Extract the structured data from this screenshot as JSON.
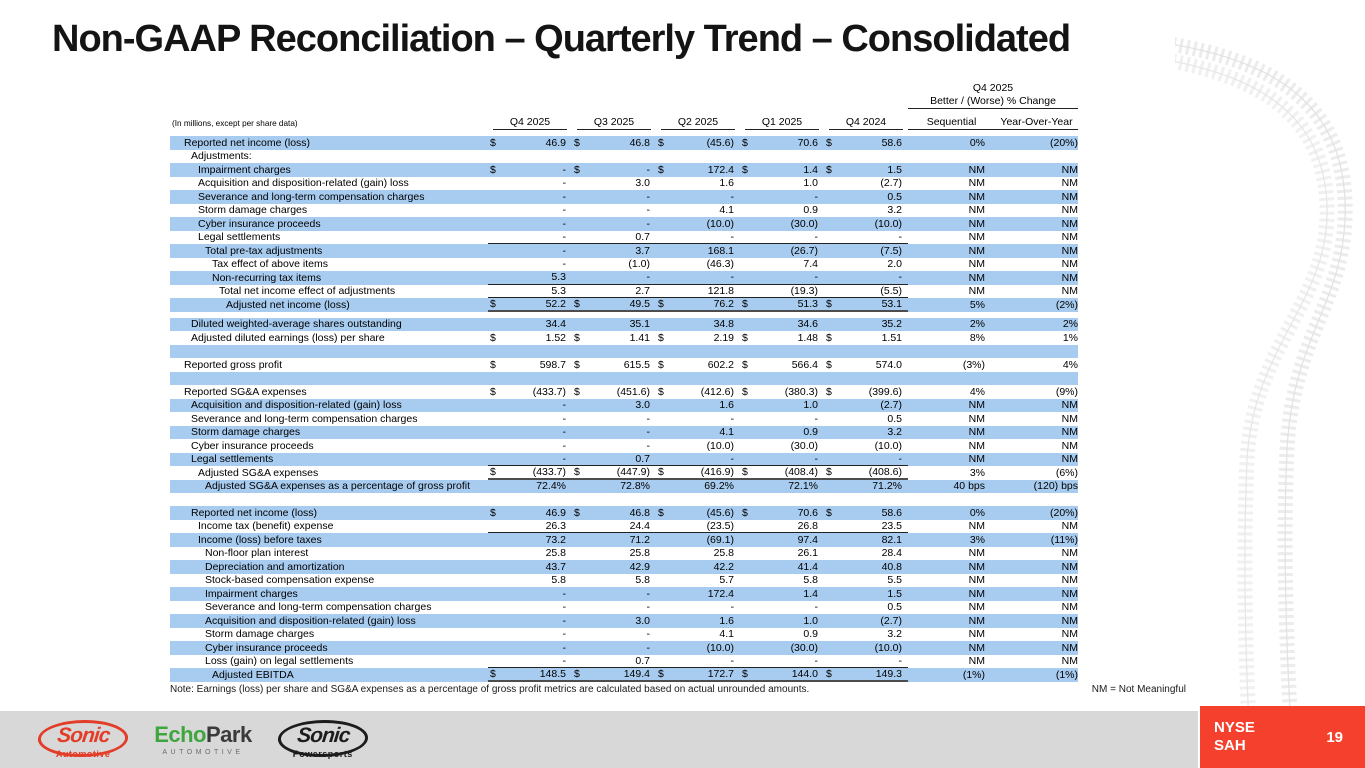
{
  "slide": {
    "title": "Non-GAAP Reconciliation – Quarterly Trend – Consolidated",
    "note": "Note: Earnings (loss) per share and SG&A expenses as a percentage of gross profit metrics are calculated based on actual unrounded amounts.",
    "nm_legend": "NM = Not Meaningful"
  },
  "table": {
    "units_label": "(In millions, except per share data)",
    "change_header": {
      "line1": "Q4 2025",
      "line2": "Better / (Worse) % Change"
    },
    "columns": [
      "Q4 2025",
      "Q3 2025",
      "Q2 2025",
      "Q1 2025",
      "Q4 2024"
    ],
    "change_columns": [
      "Sequential",
      "Year-Over-Year"
    ],
    "rows": [
      {
        "label": "Reported net income (loss)",
        "indent": 0,
        "shaded": true,
        "dollar": true,
        "values": [
          "46.9",
          "46.8",
          "(45.6)",
          "70.6",
          "58.6"
        ],
        "seq": "0%",
        "yoy": "(20%)"
      },
      {
        "label": "Adjustments:",
        "indent": 1,
        "shaded": false,
        "values": [
          "",
          "",
          "",
          "",
          ""
        ],
        "seq": "",
        "yoy": ""
      },
      {
        "label": "Impairment charges",
        "indent": 2,
        "shaded": true,
        "dollar": true,
        "values": [
          "-",
          "-",
          "172.4",
          "1.4",
          "1.5"
        ],
        "seq": "NM",
        "yoy": "NM"
      },
      {
        "label": "Acquisition and disposition-related (gain) loss",
        "indent": 2,
        "shaded": false,
        "values": [
          "-",
          "3.0",
          "1.6",
          "1.0",
          "(2.7)"
        ],
        "seq": "NM",
        "yoy": "NM"
      },
      {
        "label": "Severance and long-term compensation charges",
        "indent": 2,
        "shaded": true,
        "values": [
          "-",
          "-",
          "-",
          "-",
          "0.5"
        ],
        "seq": "NM",
        "yoy": "NM"
      },
      {
        "label": "Storm damage charges",
        "indent": 2,
        "shaded": false,
        "values": [
          "-",
          "-",
          "4.1",
          "0.9",
          "3.2"
        ],
        "seq": "NM",
        "yoy": "NM"
      },
      {
        "label": "Cyber insurance proceeds",
        "indent": 2,
        "shaded": true,
        "values": [
          "-",
          "-",
          "(10.0)",
          "(30.0)",
          "(10.0)"
        ],
        "seq": "NM",
        "yoy": "NM"
      },
      {
        "label": "Legal settlements",
        "indent": 2,
        "shaded": false,
        "values": [
          "-",
          "0.7",
          "-",
          "-",
          "-"
        ],
        "seq": "NM",
        "yoy": "NM",
        "border": "thin"
      },
      {
        "label": "Total pre-tax adjustments",
        "indent": 3,
        "shaded": true,
        "values": [
          "-",
          "3.7",
          "168.1",
          "(26.7)",
          "(7.5)"
        ],
        "seq": "NM",
        "yoy": "NM"
      },
      {
        "label": "Tax effect of above items",
        "indent": 4,
        "shaded": false,
        "values": [
          "-",
          "(1.0)",
          "(46.3)",
          "7.4",
          "2.0"
        ],
        "seq": "NM",
        "yoy": "NM"
      },
      {
        "label": "Non-recurring tax items",
        "indent": 4,
        "shaded": true,
        "values": [
          "5.3",
          "-",
          "-",
          "-",
          "-"
        ],
        "seq": "NM",
        "yoy": "NM",
        "border": "thin"
      },
      {
        "label": "Total net income effect of adjustments",
        "indent": 5,
        "shaded": false,
        "values": [
          "5.3",
          "2.7",
          "121.8",
          "(19.3)",
          "(5.5)"
        ],
        "seq": "NM",
        "yoy": "NM",
        "border": "thin"
      },
      {
        "label": "Adjusted net income (loss)",
        "indent": 6,
        "shaded": true,
        "dollar": true,
        "values": [
          "52.2",
          "49.5",
          "76.2",
          "51.3",
          "53.1"
        ],
        "seq": "5%",
        "yoy": "(2%)",
        "border": "thick"
      },
      {
        "type": "gap",
        "h": 6
      },
      {
        "label": "Diluted weighted-average shares outstanding",
        "indent": 1,
        "shaded": true,
        "values": [
          "34.4",
          "35.1",
          "34.8",
          "34.6",
          "35.2"
        ],
        "seq": "2%",
        "yoy": "2%"
      },
      {
        "label": "Adjusted diluted earnings (loss) per share",
        "indent": 1,
        "shaded": false,
        "dollar": true,
        "values": [
          "1.52",
          "1.41",
          "2.19",
          "1.48",
          "1.51"
        ],
        "seq": "8%",
        "yoy": "1%"
      },
      {
        "type": "blank",
        "shaded": true
      },
      {
        "label": "Reported gross profit",
        "indent": 0,
        "shaded": false,
        "dollar": true,
        "values": [
          "598.7",
          "615.5",
          "602.2",
          "566.4",
          "574.0"
        ],
        "seq": "(3%)",
        "yoy": "4%"
      },
      {
        "type": "blank",
        "shaded": true
      },
      {
        "label": "Reported SG&A expenses",
        "indent": 0,
        "shaded": false,
        "dollar": true,
        "values": [
          "(433.7)",
          "(451.6)",
          "(412.6)",
          "(380.3)",
          "(399.6)"
        ],
        "seq": "4%",
        "yoy": "(9%)"
      },
      {
        "label": "Acquisition and disposition-related (gain) loss",
        "indent": 1,
        "shaded": true,
        "values": [
          "-",
          "3.0",
          "1.6",
          "1.0",
          "(2.7)"
        ],
        "seq": "NM",
        "yoy": "NM"
      },
      {
        "label": "Severance and long-term compensation charges",
        "indent": 1,
        "shaded": false,
        "values": [
          "-",
          "-",
          "-",
          "-",
          "0.5"
        ],
        "seq": "NM",
        "yoy": "NM"
      },
      {
        "label": "Storm damage charges",
        "indent": 1,
        "shaded": true,
        "values": [
          "-",
          "-",
          "4.1",
          "0.9",
          "3.2"
        ],
        "seq": "NM",
        "yoy": "NM"
      },
      {
        "label": "Cyber insurance proceeds",
        "indent": 1,
        "shaded": false,
        "values": [
          "-",
          "-",
          "(10.0)",
          "(30.0)",
          "(10.0)"
        ],
        "seq": "NM",
        "yoy": "NM"
      },
      {
        "label": "Legal settlements",
        "indent": 1,
        "shaded": true,
        "values": [
          "-",
          "0.7",
          "-",
          "-",
          "-"
        ],
        "seq": "NM",
        "yoy": "NM",
        "border": "thin"
      },
      {
        "label": "Adjusted SG&A expenses",
        "indent": 2,
        "shaded": false,
        "dollar": true,
        "values": [
          "(433.7)",
          "(447.9)",
          "(416.9)",
          "(408.4)",
          "(408.6)"
        ],
        "seq": "3%",
        "yoy": "(6%)",
        "border": "thick"
      },
      {
        "label": "Adjusted SG&A expenses as a percentage of gross profit",
        "indent": 3,
        "shaded": true,
        "values": [
          "72.4%",
          "72.8%",
          "69.2%",
          "72.1%",
          "71.2%"
        ],
        "seq": "40 bps",
        "yoy": "(120) bps"
      },
      {
        "type": "gap",
        "h": 13
      },
      {
        "label": "Reported net income (loss)",
        "indent": 1,
        "shaded": true,
        "dollar": true,
        "values": [
          "46.9",
          "46.8",
          "(45.6)",
          "70.6",
          "58.6"
        ],
        "seq": "0%",
        "yoy": "(20%)"
      },
      {
        "label": "Income tax (benefit) expense",
        "indent": 2,
        "shaded": false,
        "values": [
          "26.3",
          "24.4",
          "(23.5)",
          "26.8",
          "23.5"
        ],
        "seq": "NM",
        "yoy": "NM",
        "border": "thin"
      },
      {
        "label": "Income (loss) before taxes",
        "indent": 2,
        "shaded": true,
        "values": [
          "73.2",
          "71.2",
          "(69.1)",
          "97.4",
          "82.1"
        ],
        "seq": "3%",
        "yoy": "(11%)"
      },
      {
        "label": "Non-floor plan interest",
        "indent": 3,
        "shaded": false,
        "values": [
          "25.8",
          "25.8",
          "25.8",
          "26.1",
          "28.4"
        ],
        "seq": "NM",
        "yoy": "NM"
      },
      {
        "label": "Depreciation and amortization",
        "indent": 3,
        "shaded": true,
        "values": [
          "43.7",
          "42.9",
          "42.2",
          "41.4",
          "40.8"
        ],
        "seq": "NM",
        "yoy": "NM"
      },
      {
        "label": "Stock-based compensation expense",
        "indent": 3,
        "shaded": false,
        "values": [
          "5.8",
          "5.8",
          "5.7",
          "5.8",
          "5.5"
        ],
        "seq": "NM",
        "yoy": "NM"
      },
      {
        "label": "Impairment charges",
        "indent": 3,
        "shaded": true,
        "values": [
          "-",
          "-",
          "172.4",
          "1.4",
          "1.5"
        ],
        "seq": "NM",
        "yoy": "NM"
      },
      {
        "label": "Severance and long-term compensation charges",
        "indent": 3,
        "shaded": false,
        "values": [
          "-",
          "-",
          "-",
          "-",
          "0.5"
        ],
        "seq": "NM",
        "yoy": "NM"
      },
      {
        "label": "Acquisition and disposition-related (gain) loss",
        "indent": 3,
        "shaded": true,
        "values": [
          "-",
          "3.0",
          "1.6",
          "1.0",
          "(2.7)"
        ],
        "seq": "NM",
        "yoy": "NM"
      },
      {
        "label": "Storm damage charges",
        "indent": 3,
        "shaded": false,
        "values": [
          "-",
          "-",
          "4.1",
          "0.9",
          "3.2"
        ],
        "seq": "NM",
        "yoy": "NM"
      },
      {
        "label": "Cyber insurance proceeds",
        "indent": 3,
        "shaded": true,
        "values": [
          "-",
          "-",
          "(10.0)",
          "(30.0)",
          "(10.0)"
        ],
        "seq": "NM",
        "yoy": "NM"
      },
      {
        "label": "Loss (gain) on legal settlements",
        "indent": 3,
        "shaded": false,
        "values": [
          "-",
          "0.7",
          "-",
          "-",
          "-"
        ],
        "seq": "NM",
        "yoy": "NM",
        "border": "thin"
      },
      {
        "label": "Adjusted EBITDA",
        "indent": 4,
        "shaded": true,
        "dollar": true,
        "values": [
          "148.5",
          "149.4",
          "172.7",
          "144.0",
          "149.3"
        ],
        "seq": "(1%)",
        "yoy": "(1%)",
        "border": "thick"
      }
    ]
  },
  "footer": {
    "ticker_line1": "NYSE",
    "ticker_line2": "SAH",
    "page_number": "19"
  },
  "logos": {
    "sonic_automotive": {
      "name": "Sonic",
      "sub": "Automotive"
    },
    "echopark": {
      "word1": "Echo",
      "word2": "Park",
      "sub": "AUTOMOTIVE"
    },
    "sonic_powersports": {
      "name": "Sonic",
      "sub": "Powersports"
    }
  },
  "colors": {
    "stripe_blue": "#A8CCF0",
    "accent_red": "#F4402C",
    "footer_gray": "#D8D8D8",
    "sonic_red": "#E23D28",
    "echopark_green": "#3FA63F"
  }
}
